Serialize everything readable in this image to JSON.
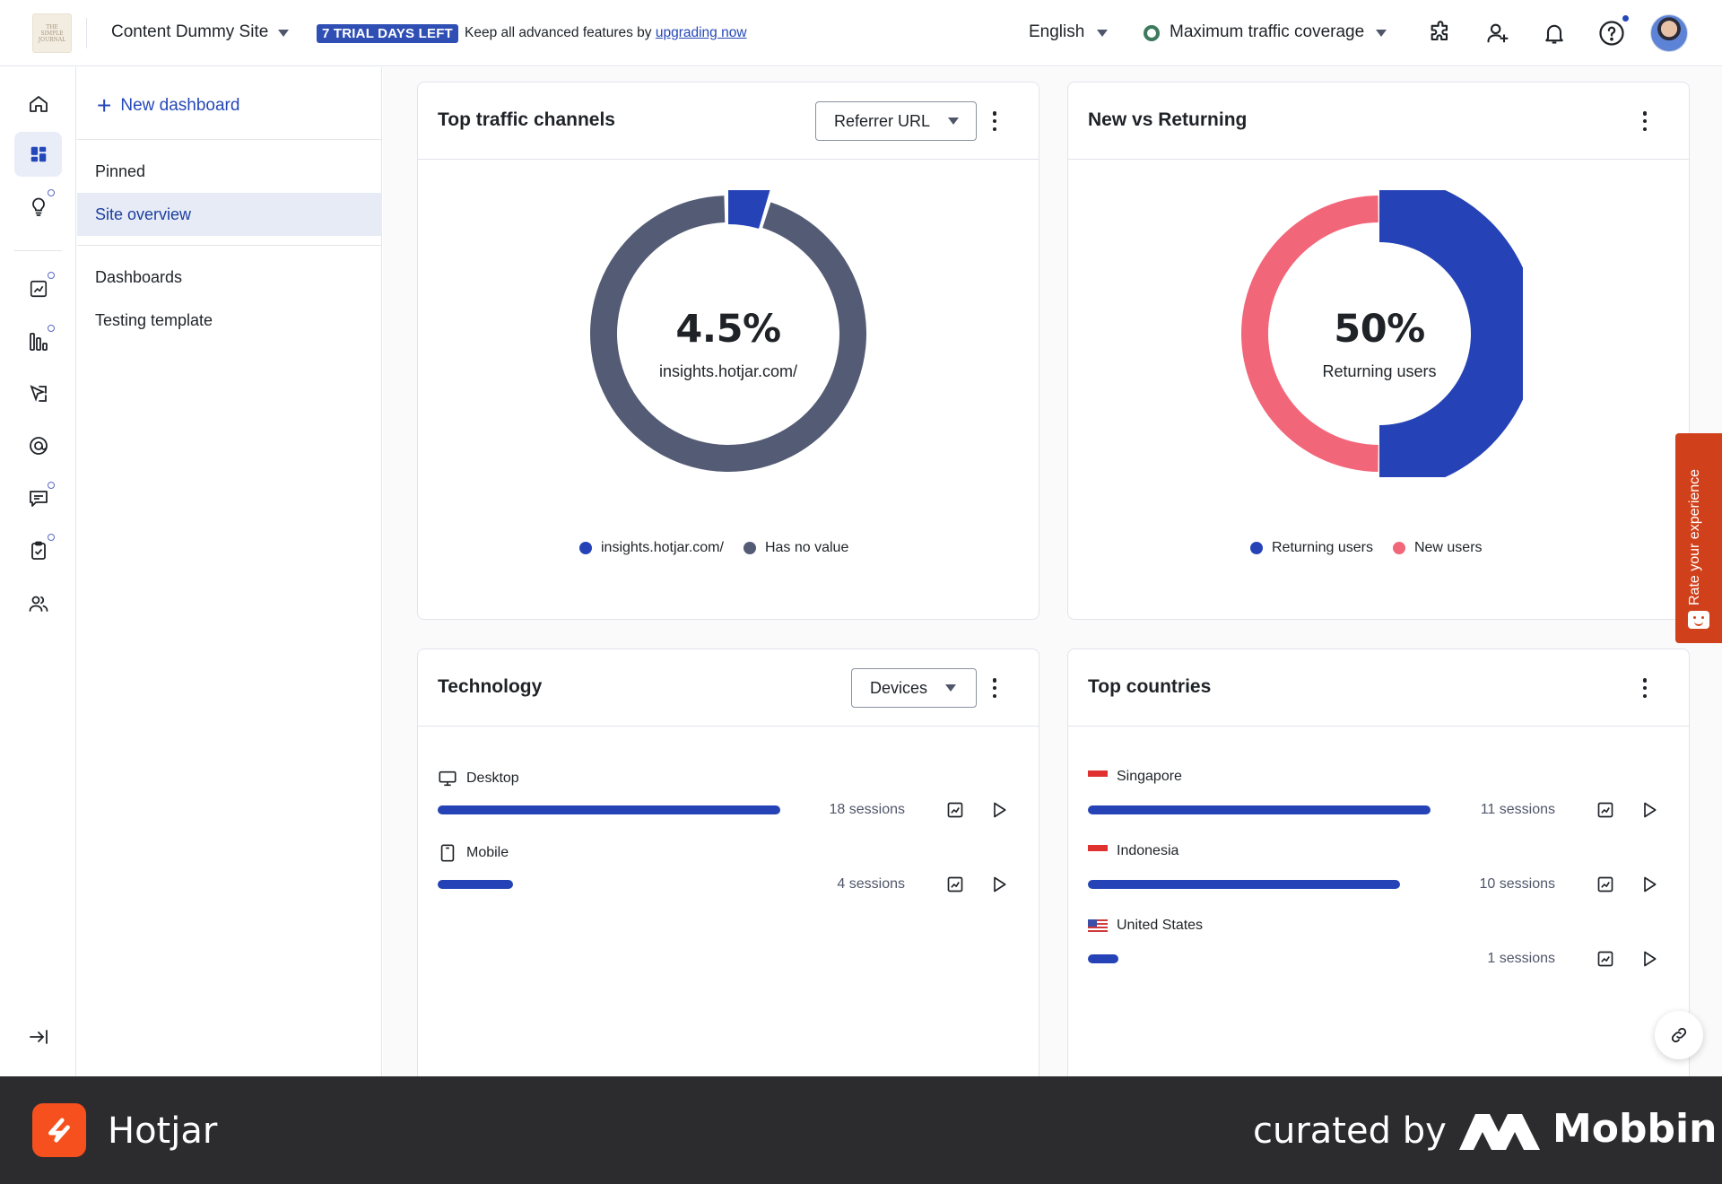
{
  "topbar": {
    "site_logo_text": "THE\nSIMPLE\nJOURNAL",
    "site_name": "Content Dummy Site",
    "trial_badge": "7 TRIAL DAYS LEFT",
    "trial_text": "Keep all advanced features by ",
    "trial_link": "upgrading now",
    "language": "English",
    "coverage": "Maximum traffic coverage",
    "icons": [
      "integrations-icon",
      "invite-user-icon",
      "notifications-icon",
      "help-icon",
      "avatar"
    ]
  },
  "rail": {
    "items": [
      {
        "name": "home-icon",
        "active": false,
        "dot": false
      },
      {
        "name": "dashboards-icon",
        "active": true,
        "dot": false
      },
      {
        "name": "insights-icon",
        "active": false,
        "dot": true
      },
      {
        "name": "trends-icon",
        "active": false,
        "dot": true
      },
      {
        "name": "funnels-icon",
        "active": false,
        "dot": true
      },
      {
        "name": "heatmaps-icon",
        "active": false,
        "dot": false
      },
      {
        "name": "recordings-icon",
        "active": false,
        "dot": false
      },
      {
        "name": "feedback-icon",
        "active": false,
        "dot": true
      },
      {
        "name": "surveys-icon",
        "active": false,
        "dot": true
      },
      {
        "name": "interviews-icon",
        "active": false,
        "dot": false
      }
    ],
    "collapse_icon": "collapse-sidebar-icon"
  },
  "panel": {
    "new_dashboard": "New dashboard",
    "pinned_heading": "Pinned",
    "pinned_items": [
      "Site overview"
    ],
    "dashboards_heading": "Dashboards",
    "dashboard_items": [
      "Testing template"
    ]
  },
  "cards": {
    "traffic": {
      "title": "Top traffic channels",
      "dropdown": "Referrer URL",
      "value": "4.5%",
      "label": "insights.hotjar.com/",
      "legend": [
        {
          "name": "insights.hotjar.com/",
          "color": "#2543b6"
        },
        {
          "name": "Has no value",
          "color": "#545b74"
        }
      ],
      "share": 0.045
    },
    "new_returning": {
      "title": "New vs Returning",
      "value": "50%",
      "label": "Returning users",
      "legend": [
        {
          "name": "Returning users",
          "color": "#2543b6"
        },
        {
          "name": "New users",
          "color": "#f2667a"
        }
      ],
      "share": 0.5
    },
    "technology": {
      "title": "Technology",
      "dropdown": "Devices",
      "rows": [
        {
          "label": "Desktop",
          "icon": "desktop-icon",
          "sessions": "18 sessions",
          "fraction": 1.0
        },
        {
          "label": "Mobile",
          "icon": "mobile-icon",
          "sessions": "4 sessions",
          "fraction": 0.22
        }
      ]
    },
    "countries": {
      "title": "Top countries",
      "rows": [
        {
          "label": "Singapore",
          "icon": "singapore-flag-icon",
          "sessions": "11 sessions",
          "fraction": 1.0
        },
        {
          "label": "Indonesia",
          "icon": "indonesia-flag-icon",
          "sessions": "10 sessions",
          "fraction": 0.91
        },
        {
          "label": "United States",
          "icon": "us-flag-icon",
          "sessions": "1 sessions",
          "fraction": 0.09
        }
      ]
    }
  },
  "rate_tab": "Rate your experience",
  "footer": {
    "brand": "Hotjar",
    "curated": "curated by",
    "mobbin": "Mobbin"
  },
  "colors": {
    "primary": "#2543b6",
    "grey_series": "#545b74",
    "pink_series": "#f2667a",
    "accent_orange": "#f5501e"
  }
}
